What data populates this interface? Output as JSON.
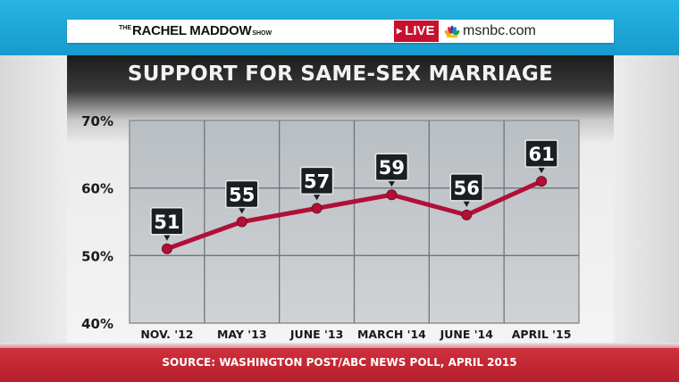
{
  "header": {
    "show_prefix": "THE",
    "show_name": "RACHEL MADDOW",
    "show_suffix": "SHOW",
    "live_label": "LIVE",
    "network": "msnbc.com"
  },
  "colors": {
    "line": "#b11036",
    "live": "#c8102e",
    "footer": "#c42a36",
    "plot_bg": "#c5c9cc"
  },
  "chart_data": {
    "type": "line",
    "title": "SUPPORT FOR SAME-SEX MARRIAGE",
    "categories": [
      "NOV. '12",
      "MAY '13",
      "JUNE '13",
      "MARCH '14",
      "JUNE '14",
      "APRIL '15"
    ],
    "series": [
      {
        "values": [
          51,
          55,
          57,
          59,
          56,
          61
        ]
      }
    ],
    "data_labels": [
      "51",
      "55",
      "57",
      "59",
      "56",
      "61"
    ],
    "y_ticks": [
      40,
      50,
      60,
      70
    ],
    "y_tick_labels": [
      "40%",
      "50%",
      "60%",
      "70%"
    ],
    "ylim": [
      40,
      70
    ],
    "grid": true,
    "xlabel": "",
    "ylabel": ""
  },
  "footer": {
    "source": "SOURCE: WASHINGTON POST/ABC NEWS POLL, APRIL 2015"
  }
}
